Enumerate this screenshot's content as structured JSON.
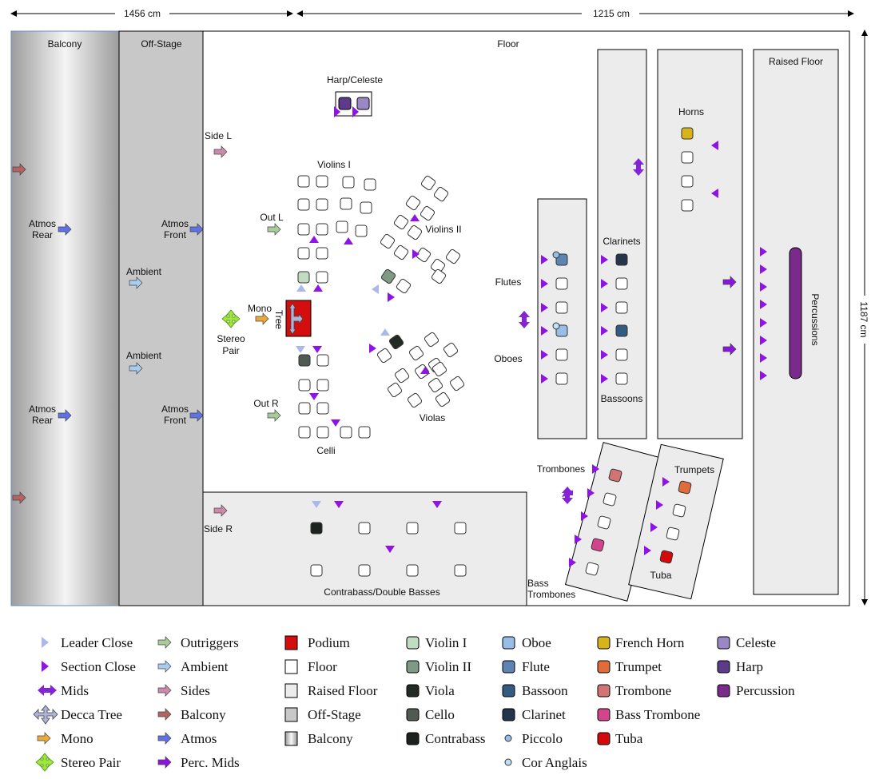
{
  "dimensions": {
    "width_label": "1456 cm",
    "depth_label": "1215 cm",
    "height_label": "1187 cm"
  },
  "areas": {
    "balcony": "Balcony",
    "offstage": "Off-Stage",
    "floor": "Floor",
    "raised_floor": "Raised Floor"
  },
  "labels": {
    "harp_celeste": "Harp/Celeste",
    "side_l": "Side L",
    "side_r": "Side R",
    "violins1": "Violins I",
    "violins2": "Violins II",
    "violas": "Violas",
    "celli": "Celli",
    "out_l": "Out L",
    "out_r": "Out R",
    "mono": "Mono",
    "tree": "Tree",
    "stereo": "Stereo",
    "pair": "Pair",
    "flutes": "Flutes",
    "oboes": "Oboes",
    "clarinets": "Clarinets",
    "bassoons": "Bassoons",
    "horns": "Horns",
    "percussions": "Percussions",
    "trombones": "Trombones",
    "bass": "Bass",
    "bass_trombones_2": "Trombones",
    "trumpets": "Trumpets",
    "tuba": "Tuba",
    "contrabass": "Contrabass/Double Basses",
    "ambient": "Ambient",
    "atmos": "Atmos",
    "rear": "Rear",
    "front": "Front"
  },
  "legend": {
    "col1": [
      "Leader Close",
      "Section Close",
      "Mids",
      "Decca Tree",
      "Mono",
      "Stereo Pair"
    ],
    "col2": [
      "Outriggers",
      "Ambient",
      "Sides",
      "Balcony",
      "Atmos",
      "Perc. Mids"
    ],
    "col3": [
      "Podium",
      "Floor",
      "Raised Floor",
      "Off-Stage",
      "Balcony"
    ],
    "col4": [
      "Violin I",
      "Violin II",
      "Viola",
      "Cello",
      "Contrabass"
    ],
    "col5": [
      "Oboe",
      "Flute",
      "Bassoon",
      "Clarinet",
      "Piccolo",
      "Cor Anglais"
    ],
    "col6": [
      "French Horn",
      "Trumpet",
      "Trombone",
      "Bass Trombone",
      "Tuba"
    ],
    "col7": [
      "Celeste",
      "Harp",
      "Percussion"
    ]
  },
  "colors": {
    "leader_close": "#aab8ec",
    "section_close": "#8f12e6",
    "mids": "#8424d8",
    "decca_tree": "#b0b2d8",
    "mono": "#eaaa3a",
    "stereo_pair": "#9ee83a",
    "outriggers": "#a8cc98",
    "ambient": "#a8cdf0",
    "sides": "#cc8aaa",
    "balcony_mic": "#b46262",
    "atmos": "#5e72e6",
    "perc_mids": "#8a14e0",
    "podium": "#d40d0d",
    "violin1": "#c2dcc2",
    "violin2": "#7f9a84",
    "viola": "#222a24",
    "cello": "#505a52",
    "contrabass": "#1c221e",
    "oboe": "#98bde6",
    "flute": "#5e84b2",
    "bassoon": "#335a80",
    "clarinet": "#25344a",
    "french_horn": "#d8b41c",
    "trumpet": "#e06c3c",
    "trombone": "#d27474",
    "bass_trombone": "#d4448c",
    "tuba": "#d40a0a",
    "celeste": "#9a88c6",
    "harp": "#5e3a8a",
    "percussion": "#7a2a8a"
  }
}
